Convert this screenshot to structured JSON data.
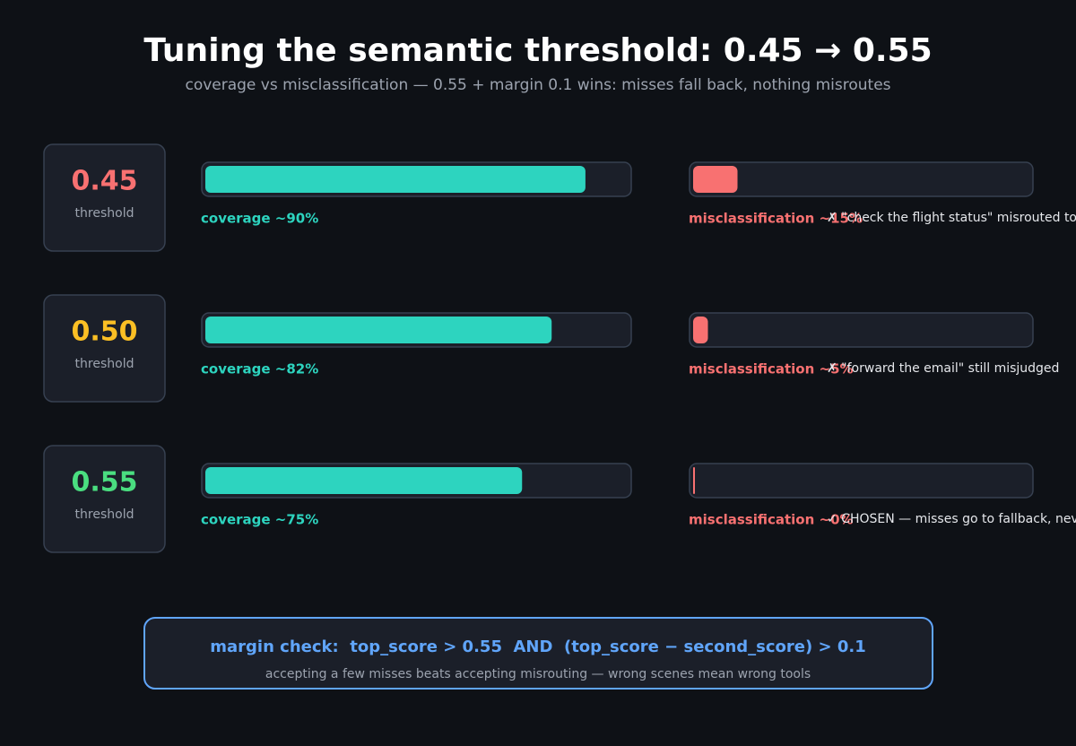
{
  "header": {
    "title": "Tuning the semantic threshold: 0.45 → 0.55",
    "subtitle": "coverage vs misclassification — 0.55 + margin 0.1 wins: misses fall back, nothing misroutes"
  },
  "rows": [
    {
      "threshold": "0.45",
      "threshold_caption": "threshold",
      "color": "#f87171",
      "coverage": 90,
      "coverage_label": "coverage ~90%",
      "misclassification": 15,
      "misclassification_label": "misclassification ~15%",
      "note": "✗ \"check the flight status\" misrouted to"
    },
    {
      "threshold": "0.50",
      "threshold_caption": "threshold",
      "color": "#fbbf24",
      "coverage": 82,
      "coverage_label": "coverage ~82%",
      "misclassification": 5,
      "misclassification_label": "misclassification ~5%",
      "note": "✗ \"forward the email\" still misjudged"
    },
    {
      "threshold": "0.55",
      "threshold_caption": "threshold",
      "color": "#4ade80",
      "coverage": 75,
      "coverage_label": "coverage ~75%",
      "misclassification": 0,
      "misclassification_label": "misclassification ~0%",
      "note": "✓ CHOSEN — misses go to fallback, never"
    }
  ],
  "footer": {
    "rule": "margin check:  top_score > 0.55  AND  (top_score − second_score) > 0.1",
    "note": "accepting a few misses beats accepting misrouting — wrong scenes mean wrong tools"
  }
}
